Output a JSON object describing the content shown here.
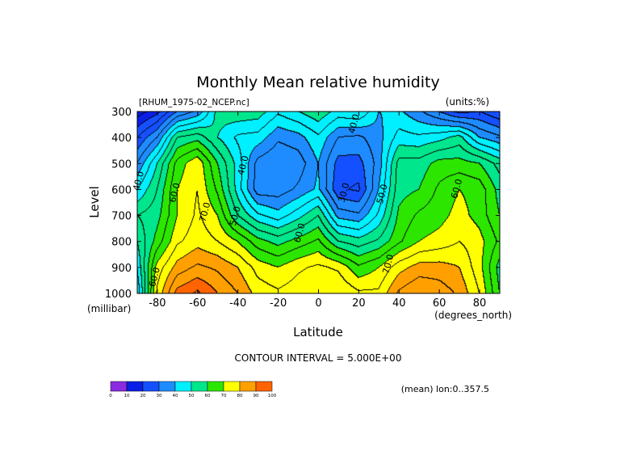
{
  "chart_data": {
    "type": "heatmap",
    "title": "Monthly Mean relative humidity",
    "dataset_label": "[RHUM_1975-02_NCEP.nc]",
    "units_label": "(units:%)",
    "xlabel": "Latitude",
    "x_units": "(degrees_north)",
    "ylabel": "Level",
    "y_units": "(millibar)",
    "xlim": [
      -90,
      90
    ],
    "ylim": [
      1000,
      300
    ],
    "x_ticks": [
      -80,
      -60,
      -40,
      -20,
      0,
      20,
      40,
      60,
      80
    ],
    "x_tick_labels": [
      "-80",
      "-60",
      "-40",
      "-20",
      "0",
      "20",
      "40",
      "60",
      "80"
    ],
    "y_ticks": [
      300,
      400,
      500,
      600,
      700,
      800,
      900,
      1000
    ],
    "y_tick_labels": [
      "300",
      "400",
      "500",
      "600",
      "700",
      "800",
      "900",
      "1000"
    ],
    "contour_interval_text": "CONTOUR INTERVAL = 5.000E+00",
    "mean_text": "(mean) lon:0..357.5",
    "contour_labels": [
      {
        "text": "40.0",
        "x": 19,
        "y": 350
      },
      {
        "text": "40.0",
        "x": -36,
        "y": 510
      },
      {
        "text": "30.0",
        "x": 14,
        "y": 615
      },
      {
        "text": "50.0",
        "x": 33,
        "y": 620
      },
      {
        "text": "60.0",
        "x": -70,
        "y": 615
      },
      {
        "text": "70.0",
        "x": -55,
        "y": 690
      },
      {
        "text": "50.0",
        "x": -40,
        "y": 705
      },
      {
        "text": "60.0",
        "x": -8,
        "y": 770
      },
      {
        "text": "60.0",
        "x": 70,
        "y": 600
      },
      {
        "text": "70.0",
        "x": 36,
        "y": 890
      },
      {
        "text": "60.0",
        "x": -80,
        "y": 940
      },
      {
        "text": "40.0",
        "x": -88,
        "y": 570
      }
    ],
    "colorbar": {
      "colors": [
        "#8a2be2",
        "#0a1ee6",
        "#1450ff",
        "#1e8cff",
        "#00f0ff",
        "#00e68c",
        "#2de600",
        "#ffff00",
        "#ffa000",
        "#ff6400",
        "#ff0000"
      ],
      "tick_labels": [
        "0",
        "10",
        "20",
        "30",
        "40",
        "50",
        "60",
        "70",
        "80",
        "90",
        "100"
      ]
    },
    "lat_grid": [
      -90,
      -80,
      -70,
      -60,
      -50,
      -40,
      -30,
      -20,
      -10,
      0,
      10,
      20,
      30,
      40,
      50,
      60,
      70,
      80,
      90
    ],
    "level_grid": [
      300,
      400,
      500,
      600,
      700,
      800,
      900,
      1000
    ],
    "values": [
      [
        12,
        18,
        30,
        36,
        52,
        54,
        53,
        46,
        50,
        54,
        48,
        50,
        40,
        41,
        36,
        30,
        23,
        25,
        20
      ],
      [
        25,
        35,
        55,
        58,
        50,
        44,
        43,
        36,
        38,
        44,
        35,
        34,
        38,
        47,
        46,
        48,
        52,
        40,
        36
      ],
      [
        35,
        50,
        67,
        74,
        60,
        48,
        33,
        30,
        32,
        40,
        28,
        28,
        37,
        57,
        57,
        62,
        62,
        60,
        53
      ],
      [
        45,
        55,
        70,
        75,
        64,
        48,
        32,
        32,
        36,
        41,
        26,
        24,
        40,
        58,
        60,
        66,
        70,
        68,
        58
      ],
      [
        55,
        58,
        70,
        76,
        70,
        55,
        46,
        42,
        48,
        55,
        38,
        36,
        46,
        61,
        66,
        68,
        72,
        68,
        60
      ],
      [
        50,
        62,
        74,
        78,
        75,
        70,
        62,
        58,
        62,
        66,
        55,
        52,
        56,
        64,
        70,
        72,
        75,
        72,
        64
      ],
      [
        45,
        72,
        82,
        86,
        84,
        80,
        73,
        70,
        74,
        76,
        74,
        66,
        70,
        78,
        82,
        82,
        80,
        72,
        58
      ],
      [
        40,
        76,
        92,
        96,
        90,
        85,
        78,
        76,
        78,
        80,
        80,
        76,
        76,
        86,
        90,
        88,
        84,
        75,
        60
      ]
    ]
  }
}
